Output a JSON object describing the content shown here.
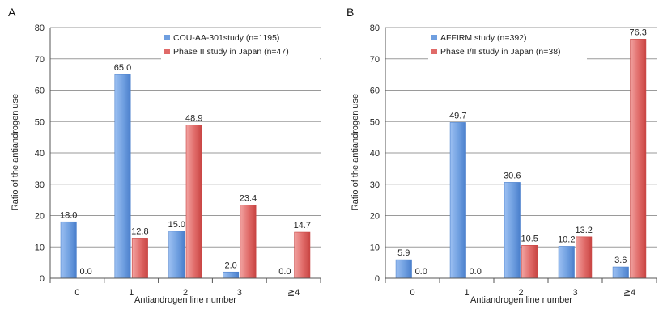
{
  "chart_data": [
    {
      "panel_label": "A",
      "type": "bar",
      "categories": [
        "0",
        "1",
        "2",
        "3",
        "≧4"
      ],
      "series": [
        {
          "name": "COU-AA-301study (n=1195)",
          "values": [
            18.0,
            65.0,
            15.0,
            2.0,
            0.0
          ],
          "labels": [
            "18.0",
            "65.0",
            "15.0",
            "2.0",
            "0.0"
          ],
          "color": "#6f9fe0"
        },
        {
          "name": "Phase II study in Japan (n=47)",
          "values": [
            0.0,
            12.8,
            48.9,
            23.4,
            14.7
          ],
          "labels": [
            "0.0",
            "12.8",
            "48.9",
            "23.4",
            "14.7"
          ],
          "color": "#e06a68"
        }
      ],
      "xlabel": "Antiandrogen line number",
      "ylabel": "Ratio of the antiandrogen use",
      "ylim": [
        0,
        80
      ],
      "yticks": [
        "0",
        "10",
        "20",
        "30",
        "40",
        "50",
        "60",
        "70",
        "80"
      ],
      "grid": true,
      "legend_position": "top-right"
    },
    {
      "panel_label": "B",
      "type": "bar",
      "categories": [
        "0",
        "1",
        "2",
        "3",
        "≧4"
      ],
      "series": [
        {
          "name": "AFFIRM study (n=392)",
          "values": [
            5.9,
            49.7,
            30.6,
            10.2,
            3.6
          ],
          "labels": [
            "5.9",
            "49.7",
            "30.6",
            "10.2",
            "3.6"
          ],
          "color": "#6f9fe0"
        },
        {
          "name": "Phase I/II study in Japan  (n=38)",
          "values": [
            0.0,
            0.0,
            10.5,
            13.2,
            76.3
          ],
          "labels": [
            "0.0",
            "0.0",
            "10.5",
            "13.2",
            "76.3"
          ],
          "color": "#e06a68"
        }
      ],
      "xlabel": "Antiandrogen line number",
      "ylabel": "Ratio of the antiandrogen use",
      "ylim": [
        0,
        80
      ],
      "yticks": [
        "0",
        "10",
        "20",
        "30",
        "40",
        "50",
        "60",
        "70",
        "80"
      ],
      "grid": true,
      "legend_position": "top-left"
    }
  ]
}
